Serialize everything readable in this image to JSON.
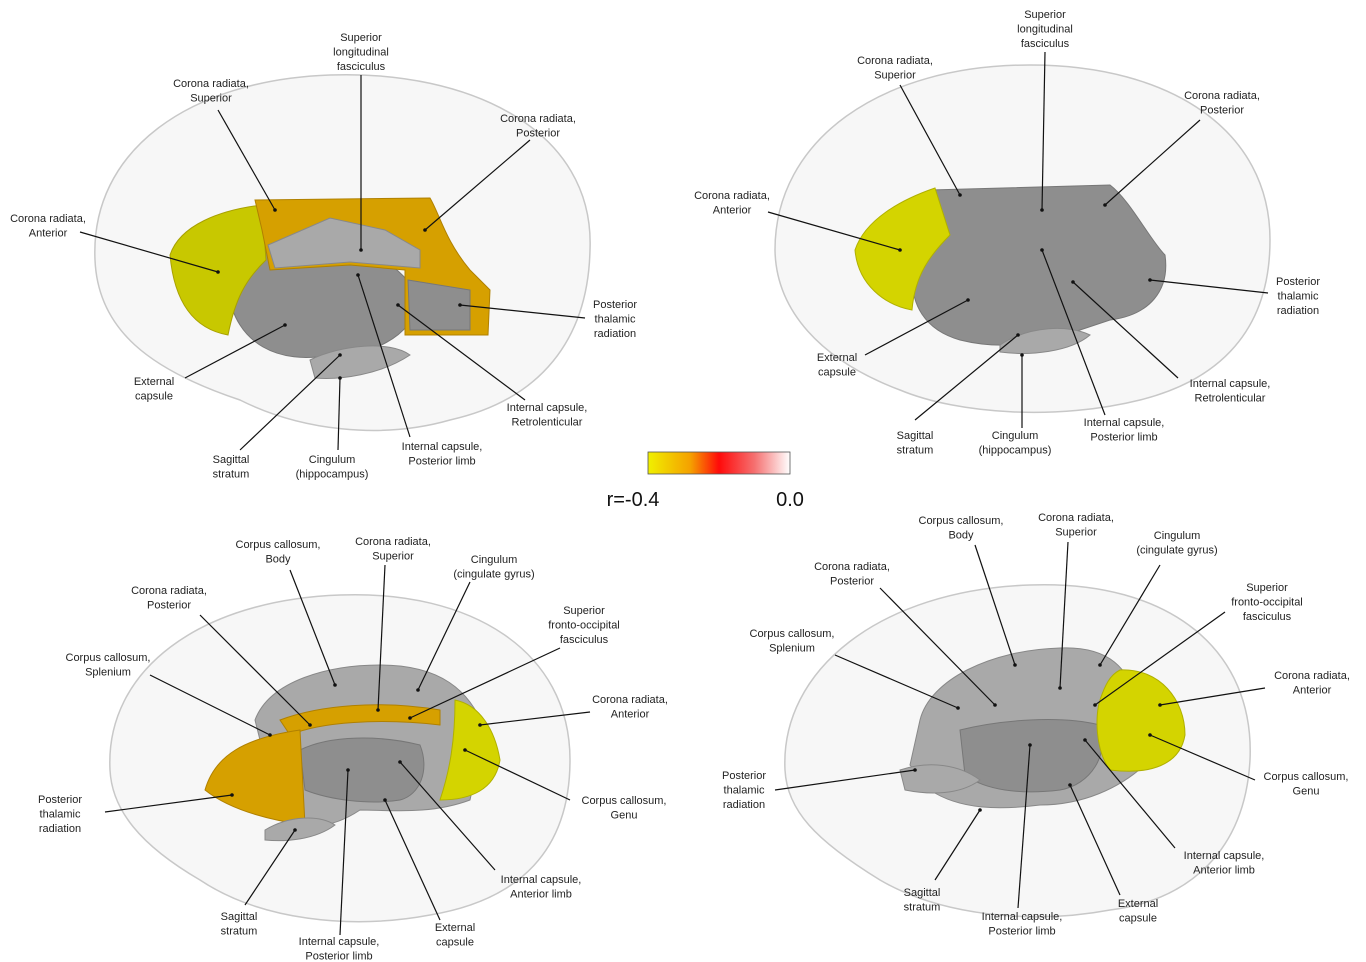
{
  "panels": [
    {
      "labels": [
        {
          "lines": [
            "Superior",
            "longitudinal",
            "fasciculus"
          ]
        },
        {
          "lines": [
            "Corona radiata,",
            "Superior"
          ]
        },
        {
          "lines": [
            "Corona radiata,",
            "Posterior"
          ]
        },
        {
          "lines": [
            "Corona radiata,",
            "Anterior"
          ]
        },
        {
          "lines": [
            "Posterior",
            "thalamic",
            "radiation"
          ]
        },
        {
          "lines": [
            "External",
            "capsule"
          ]
        },
        {
          "lines": [
            "Internal capsule,",
            "Retrolenticular"
          ]
        },
        {
          "lines": [
            "Internal capsule,",
            "Posterior limb"
          ]
        },
        {
          "lines": [
            "Cingulum",
            "(hippocampus)"
          ]
        },
        {
          "lines": [
            "Sagittal",
            "stratum"
          ]
        }
      ]
    },
    {
      "labels": [
        {
          "lines": [
            "Superior",
            "longitudinal",
            "fasciculus"
          ]
        },
        {
          "lines": [
            "Corona radiata,",
            "Superior"
          ]
        },
        {
          "lines": [
            "Corona radiata,",
            "Posterior"
          ]
        },
        {
          "lines": [
            "Corona radiata,",
            "Anterior"
          ]
        },
        {
          "lines": [
            "Posterior",
            "thalamic",
            "radiation"
          ]
        },
        {
          "lines": [
            "External",
            "capsule"
          ]
        },
        {
          "lines": [
            "Internal capsule,",
            "Retrolenticular"
          ]
        },
        {
          "lines": [
            "Internal capsule,",
            "Posterior limb"
          ]
        },
        {
          "lines": [
            "Cingulum",
            "(hippocampus)"
          ]
        },
        {
          "lines": [
            "Sagittal",
            "stratum"
          ]
        }
      ]
    },
    {
      "labels": [
        {
          "lines": [
            "Corpus callosum,",
            "Body"
          ]
        },
        {
          "lines": [
            "Corona radiata,",
            "Superior"
          ]
        },
        {
          "lines": [
            "Cingulum",
            "(cingulate gyrus)"
          ]
        },
        {
          "lines": [
            "Corona radiata,",
            "Posterior"
          ]
        },
        {
          "lines": [
            "Superior",
            "fronto-occipital",
            "fasciculus"
          ]
        },
        {
          "lines": [
            "Corpus callosum,",
            "Splenium"
          ]
        },
        {
          "lines": [
            "Corona radiata,",
            "Anterior"
          ]
        },
        {
          "lines": [
            "Posterior",
            "thalamic",
            "radiation"
          ]
        },
        {
          "lines": [
            "Corpus callosum,",
            "Genu"
          ]
        },
        {
          "lines": [
            "Internal capsule,",
            "Anterior limb"
          ]
        },
        {
          "lines": [
            "Sagittal",
            "stratum"
          ]
        },
        {
          "lines": [
            "External",
            "capsule"
          ]
        },
        {
          "lines": [
            "Internal capsule,",
            "Posterior limb"
          ]
        }
      ]
    },
    {
      "labels": [
        {
          "lines": [
            "Corpus callosum,",
            "Body"
          ]
        },
        {
          "lines": [
            "Corona radiata,",
            "Superior"
          ]
        },
        {
          "lines": [
            "Cingulum",
            "(cingulate gyrus)"
          ]
        },
        {
          "lines": [
            "Corona radiata,",
            "Posterior"
          ]
        },
        {
          "lines": [
            "Superior",
            "fronto-occipital",
            "fasciculus"
          ]
        },
        {
          "lines": [
            "Corpus callosum,",
            "Splenium"
          ]
        },
        {
          "lines": [
            "Corona radiata,",
            "Anterior"
          ]
        },
        {
          "lines": [
            "Posterior",
            "thalamic",
            "radiation"
          ]
        },
        {
          "lines": [
            "Corpus callosum,",
            "Genu"
          ]
        },
        {
          "lines": [
            "Internal capsule,",
            "Anterior limb"
          ]
        },
        {
          "lines": [
            "Sagittal",
            "stratum"
          ]
        },
        {
          "lines": [
            "External",
            "capsule"
          ]
        },
        {
          "lines": [
            "Internal capsule,",
            "Posterior limb"
          ]
        }
      ]
    }
  ],
  "colorbar": {
    "min_label": "r=-0.4",
    "max_label": "0.0"
  }
}
